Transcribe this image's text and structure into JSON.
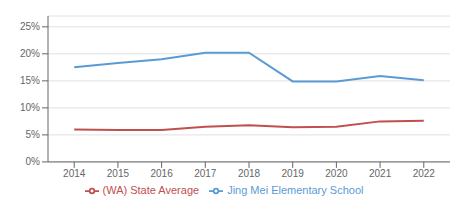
{
  "chart_data": {
    "type": "line",
    "x": [
      2014,
      2015,
      2016,
      2017,
      2018,
      2019,
      2020,
      2021,
      2022
    ],
    "xlim": [
      2013.4,
      2022.6
    ],
    "xticks": [
      2014,
      2015,
      2016,
      2017,
      2018,
      2019,
      2020,
      2021,
      2022
    ],
    "ylim": [
      0,
      0.27
    ],
    "yticks": [
      {
        "value": 0.0,
        "label": "0%"
      },
      {
        "value": 0.05,
        "label": "5%"
      },
      {
        "value": 0.1,
        "label": "10%"
      },
      {
        "value": 0.15,
        "label": "15%"
      },
      {
        "value": 0.2,
        "label": "20%"
      },
      {
        "value": 0.25,
        "label": "25%"
      }
    ],
    "series": [
      {
        "name": "Jing Mei Elementary School",
        "color": "#5B9BD5",
        "values": [
          0.175,
          0.183,
          0.19,
          0.202,
          0.202,
          0.149,
          0.149,
          0.159,
          0.151
        ]
      },
      {
        "name": "(WA) State Average",
        "color": "#C0504D",
        "values": [
          0.06,
          0.059,
          0.059,
          0.065,
          0.068,
          0.064,
          0.065,
          0.075,
          0.076
        ]
      }
    ],
    "grid": true,
    "legend": "bottom"
  }
}
